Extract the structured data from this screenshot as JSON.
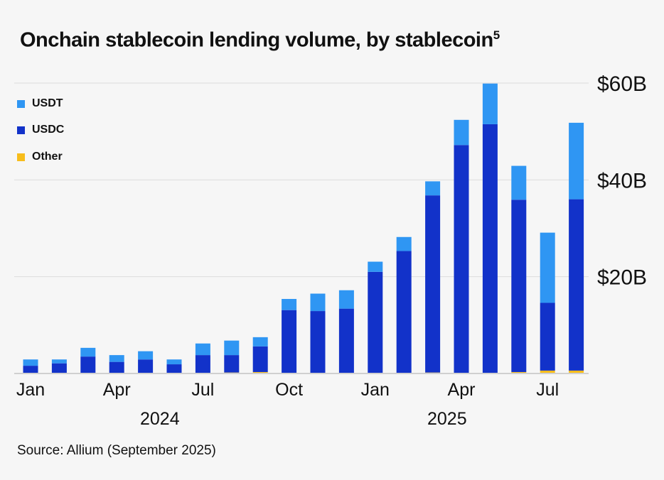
{
  "title": "Onchain stablecoin lending volume, by stablecoin",
  "title_footnote": "5",
  "source": "Source: Allium (September 2025)",
  "chart_data": {
    "type": "bar",
    "stacked": true,
    "categories": [
      "Jan 2024",
      "Feb 2024",
      "Mar 2024",
      "Apr 2024",
      "May 2024",
      "Jun 2024",
      "Jul 2024",
      "Aug 2024",
      "Sep 2024",
      "Oct 2024",
      "Nov 2024",
      "Dec 2024",
      "Jan 2025",
      "Feb 2025",
      "Mar 2025",
      "Apr 2025",
      "May 2025",
      "Jun 2025",
      "Jul 2025",
      "Aug 2025"
    ],
    "x_tick_labels": [
      "Jan",
      "Apr",
      "Jul",
      "Oct",
      "Jan",
      "Apr",
      "Jul"
    ],
    "x_tick_indices": [
      0,
      3,
      6,
      9,
      12,
      15,
      18
    ],
    "year_labels": [
      "2024",
      "2025"
    ],
    "year_label_positions": [
      4.5,
      14.5
    ],
    "series": [
      {
        "name": "Other",
        "color": "#f7bd1c",
        "values": [
          0.1,
          0.1,
          0.1,
          0.1,
          0.1,
          0.1,
          0.1,
          0.2,
          0.3,
          0.1,
          0.1,
          0.1,
          0.1,
          0.1,
          0.2,
          0.1,
          0.1,
          0.3,
          0.6,
          0.6
        ]
      },
      {
        "name": "USDC",
        "color": "#1232c9",
        "values": [
          1.5,
          2.0,
          3.4,
          2.3,
          2.8,
          1.8,
          3.7,
          3.6,
          5.3,
          13.0,
          12.8,
          13.3,
          20.9,
          25.2,
          36.6,
          47.1,
          51.4,
          35.6,
          14.0,
          35.4
        ]
      },
      {
        "name": "USDT",
        "color": "#2f96f3",
        "values": [
          1.3,
          0.8,
          1.8,
          1.4,
          1.7,
          1.0,
          2.4,
          3.0,
          1.9,
          2.3,
          3.6,
          3.8,
          2.1,
          2.9,
          2.9,
          5.2,
          8.4,
          7.0,
          14.5,
          15.8
        ]
      }
    ],
    "legend_order": [
      "USDT",
      "USDC",
      "Other"
    ],
    "y_ticks": [
      20,
      40,
      60
    ],
    "y_tick_labels": [
      "$20B",
      "$40B",
      "$60B"
    ],
    "ylim": [
      0,
      60
    ],
    "unit": "$B",
    "grid": true,
    "y_axis_side": "right",
    "legend_position": "top-left"
  }
}
